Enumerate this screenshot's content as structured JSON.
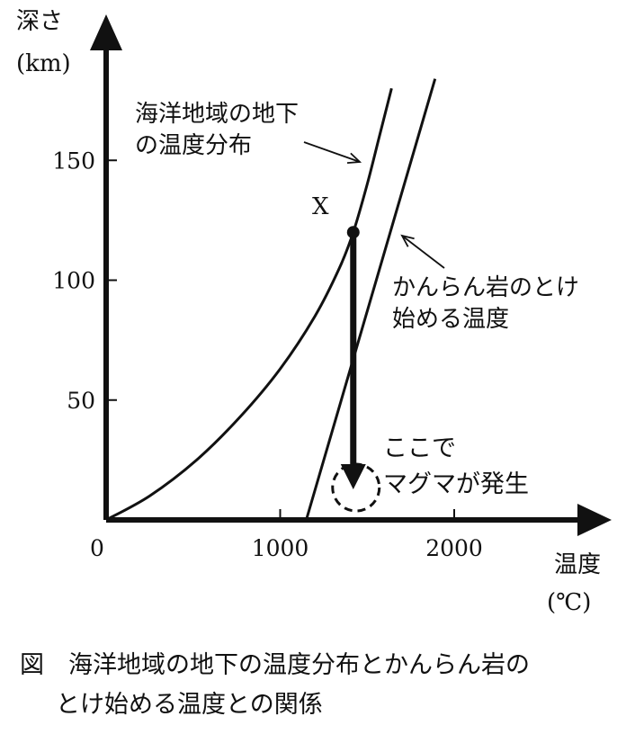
{
  "chart_data": {
    "type": "line",
    "xlabel": "温度",
    "xunit": "(℃)",
    "ylabel": "深さ",
    "yunit": "(km)",
    "x_ticks": [
      0,
      1000,
      2000
    ],
    "y_ticks": [
      50,
      100,
      150
    ],
    "xlim": [
      0,
      2900
    ],
    "ylim": [
      0,
      205
    ],
    "series": [
      {
        "label": "海洋地域の地下の温度分布",
        "points": [
          [
            0,
            0
          ],
          [
            250,
            10
          ],
          [
            520,
            25
          ],
          [
            770,
            43
          ],
          [
            1000,
            63
          ],
          [
            1200,
            85
          ],
          [
            1340,
            105
          ],
          [
            1420,
            120
          ],
          [
            1500,
            140
          ],
          [
            1570,
            160
          ],
          [
            1640,
            180
          ]
        ]
      },
      {
        "label": "かんらん岩のとけ始める温度",
        "points": [
          [
            1150,
            0
          ],
          [
            1890,
            184
          ]
        ]
      }
    ],
    "annotations": {
      "point_label": "X",
      "point": [
        1420,
        120
      ],
      "arrow_to": [
        1420,
        15
      ],
      "magma_text_1": "ここで",
      "magma_text_2": "マグマが発生"
    }
  },
  "caption": {
    "line1": "図　海洋地域の地下の温度分布とかんらん岩の",
    "line2": "とけ始める温度との関係"
  }
}
